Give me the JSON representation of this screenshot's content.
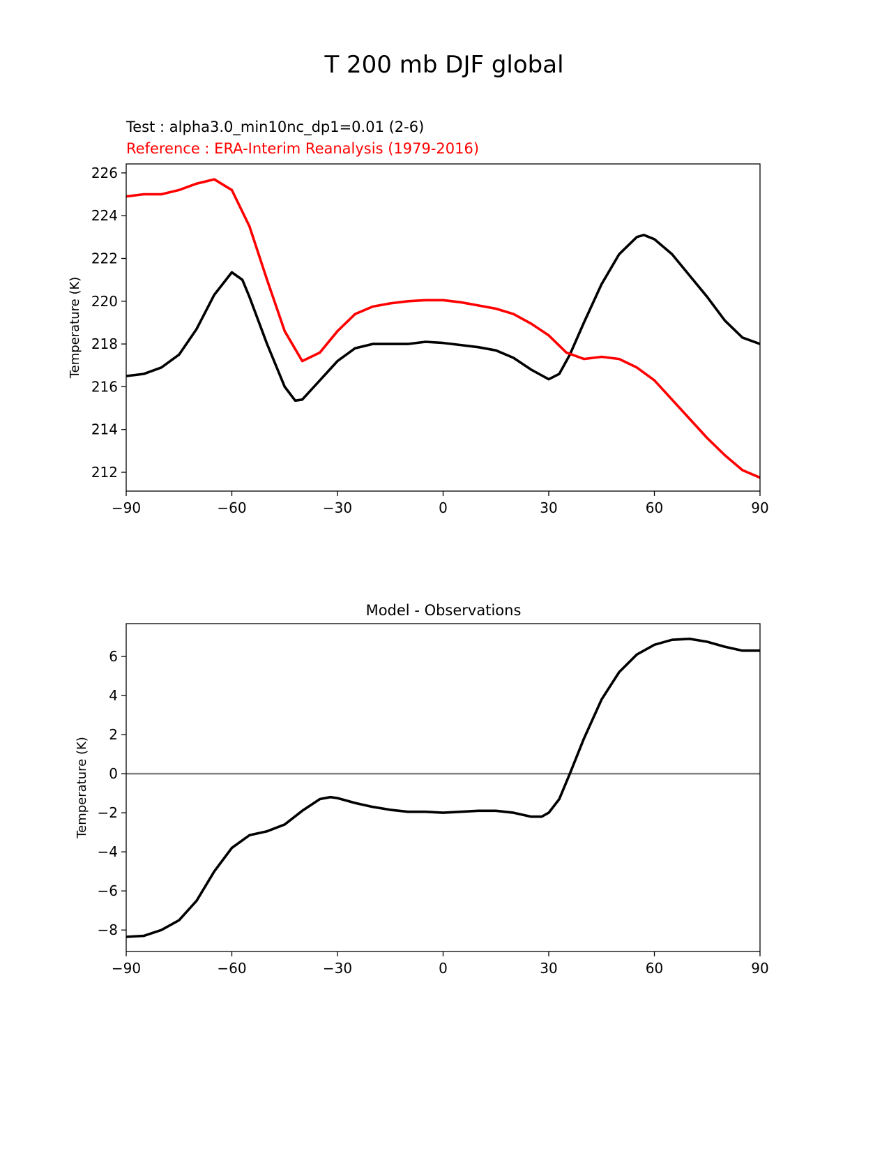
{
  "title": "T 200 mb DJF global",
  "chart_data": [
    {
      "type": "line",
      "test_label": "Test : alpha3.0_min10nc_dp1=0.01 (2-6)",
      "reference_label": "Reference : ERA-Interim Reanalysis (1979-2016)",
      "xlabel": "",
      "ylabel": "Temperature (K)",
      "xlim": [
        -90,
        90
      ],
      "ylim": [
        211.12,
        226.42
      ],
      "xticks": [
        -90,
        -60,
        -30,
        0,
        30,
        60,
        90
      ],
      "xtick_labels": [
        "−90",
        "−60",
        "−30",
        "0",
        "30",
        "60",
        "90"
      ],
      "yticks": [
        212,
        214,
        216,
        218,
        220,
        222,
        224,
        226
      ],
      "ytick_labels": [
        "212",
        "214",
        "216",
        "218",
        "220",
        "222",
        "224",
        "226"
      ],
      "grid": false,
      "series": [
        {
          "name": "Test",
          "color": "#000000",
          "x": [
            -90,
            -85,
            -80,
            -75,
            -70,
            -65,
            -60,
            -57,
            -55,
            -50,
            -45,
            -42,
            -40,
            -35,
            -30,
            -25,
            -20,
            -15,
            -10,
            -5,
            0,
            5,
            10,
            15,
            20,
            25,
            30,
            33,
            36,
            40,
            45,
            50,
            55,
            57,
            60,
            65,
            70,
            75,
            80,
            85,
            90
          ],
          "y": [
            216.5,
            216.6,
            216.9,
            217.5,
            218.7,
            220.3,
            221.35,
            221.0,
            220.2,
            218.0,
            216.0,
            215.35,
            215.4,
            216.3,
            217.2,
            217.8,
            218.0,
            218.0,
            218.0,
            218.1,
            218.05,
            217.95,
            217.85,
            217.7,
            217.35,
            216.8,
            216.35,
            216.6,
            217.5,
            219.0,
            220.8,
            222.2,
            223.0,
            223.1,
            222.9,
            222.2,
            221.2,
            220.2,
            219.1,
            218.3,
            218.0
          ]
        },
        {
          "name": "Reference",
          "color": "#ff0000",
          "x": [
            -90,
            -85,
            -80,
            -75,
            -70,
            -65,
            -60,
            -55,
            -50,
            -45,
            -40,
            -35,
            -30,
            -25,
            -20,
            -15,
            -10,
            -5,
            0,
            5,
            10,
            15,
            20,
            25,
            30,
            35,
            40,
            45,
            50,
            55,
            60,
            65,
            70,
            75,
            80,
            85,
            90
          ],
          "y": [
            224.9,
            225.0,
            225.0,
            225.2,
            225.5,
            225.7,
            225.2,
            223.5,
            221.0,
            218.6,
            217.2,
            217.6,
            218.6,
            219.4,
            219.75,
            219.9,
            220.0,
            220.05,
            220.05,
            219.95,
            219.8,
            219.65,
            219.4,
            218.95,
            218.4,
            217.6,
            217.3,
            217.4,
            217.3,
            216.9,
            216.3,
            215.4,
            214.5,
            213.6,
            212.8,
            212.1,
            211.75
          ]
        }
      ]
    },
    {
      "type": "line",
      "title": "Model - Observations",
      "xlabel": "",
      "ylabel": "Temperature (K)",
      "xlim": [
        -90,
        90
      ],
      "ylim": [
        -9.1,
        7.68
      ],
      "xticks": [
        -90,
        -60,
        -30,
        0,
        30,
        60,
        90
      ],
      "xtick_labels": [
        "−90",
        "−60",
        "−30",
        "0",
        "30",
        "60",
        "90"
      ],
      "yticks": [
        -8,
        -6,
        -4,
        -2,
        0,
        2,
        4,
        6
      ],
      "ytick_labels": [
        "−8",
        "−6",
        "−4",
        "−2",
        "0",
        "2",
        "4",
        "6"
      ],
      "grid": false,
      "zero_line_color": "#808080",
      "series": [
        {
          "name": "Model - Observations",
          "color": "#000000",
          "x": [
            -90,
            -85,
            -80,
            -75,
            -70,
            -65,
            -60,
            -55,
            -50,
            -45,
            -40,
            -35,
            -32,
            -30,
            -25,
            -20,
            -15,
            -10,
            -5,
            0,
            5,
            10,
            15,
            20,
            25,
            28,
            30,
            33,
            36,
            40,
            45,
            50,
            55,
            60,
            65,
            70,
            75,
            80,
            85,
            90
          ],
          "y": [
            -8.35,
            -8.3,
            -8.0,
            -7.5,
            -6.5,
            -5.0,
            -3.8,
            -3.15,
            -2.95,
            -2.6,
            -1.9,
            -1.3,
            -1.2,
            -1.25,
            -1.5,
            -1.7,
            -1.85,
            -1.95,
            -1.95,
            -2.0,
            -1.95,
            -1.9,
            -1.9,
            -2.0,
            -2.2,
            -2.2,
            -2.0,
            -1.3,
            0,
            1.8,
            3.8,
            5.2,
            6.1,
            6.6,
            6.85,
            6.9,
            6.75,
            6.5,
            6.3,
            6.3
          ]
        }
      ]
    }
  ]
}
